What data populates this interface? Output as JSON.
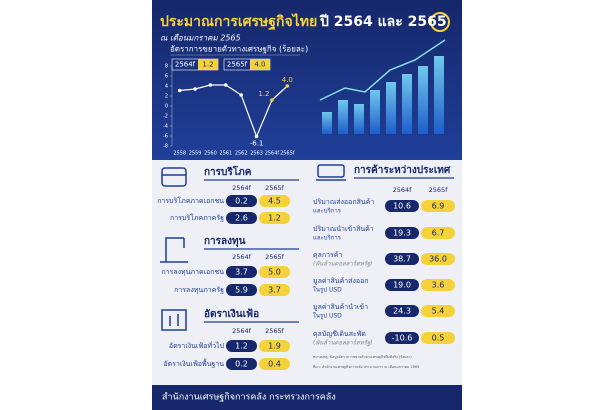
{
  "header": {
    "title_main": "ประมาณการเศรษฐกิจไทย",
    "title_years": "ปี 2564 และ 2565",
    "subtitle": "ณ เดือนมกราคม 2565"
  },
  "chart_data": {
    "type": "line",
    "title": "อัตราการขยายตัวทางเศรษฐกิจ (ร้อยละ)",
    "categories": [
      "2558",
      "2559",
      "2560",
      "2561",
      "2562",
      "2563",
      "2564f",
      "2565f"
    ],
    "values": [
      3.1,
      3.4,
      4.2,
      4.2,
      2.2,
      -6.1,
      1.2,
      4.0
    ],
    "value_labels": [
      null,
      null,
      null,
      null,
      null,
      "-6.1",
      "1.2",
      "4.0"
    ],
    "color": "#ffffff",
    "point_colors": [
      "#ffffff",
      "#ffffff",
      "#ffffff",
      "#ffffff",
      "#ffffff",
      "#ffffff",
      "#f5d13a",
      "#f5d13a"
    ],
    "ylim": [
      -8,
      8
    ],
    "yticks": [
      -8,
      -6,
      -4,
      -2,
      0,
      2,
      4,
      6,
      8
    ],
    "grid": false,
    "highlights": [
      {
        "label": "2564f",
        "value": "1.2"
      },
      {
        "label": "2565f",
        "value": "4.0"
      }
    ]
  },
  "consumption": {
    "title": "การบริโภค",
    "columns": [
      "2564f",
      "2565f"
    ],
    "rows": [
      {
        "label": [
          "การบริโภคภาคเอกชน"
        ],
        "values": [
          "0.2",
          "4.5"
        ]
      },
      {
        "label": [
          "การบริโภคภาครัฐ"
        ],
        "values": [
          "2.6",
          "1.2"
        ]
      }
    ]
  },
  "investment": {
    "title": "การลงทุน",
    "columns": [
      "2564f",
      "2565f"
    ],
    "rows": [
      {
        "label": [
          "การลงทุนภาคเอกชน"
        ],
        "values": [
          "3.7",
          "5.0"
        ]
      },
      {
        "label": [
          "การลงทุนภาครัฐ"
        ],
        "values": [
          "5.9",
          "3.7"
        ]
      }
    ]
  },
  "inflation": {
    "title": "อัตราเงินเฟ้อ",
    "columns": [
      "2564f",
      "2565f"
    ],
    "rows": [
      {
        "label": [
          "อัตราเงินเฟ้อทั่วไป"
        ],
        "values": [
          "1.2",
          "1.9"
        ]
      },
      {
        "label": [
          "อัตราเงินเฟ้อพื้นฐาน"
        ],
        "values": [
          "0.2",
          "0.4"
        ]
      }
    ]
  },
  "trade": {
    "title": "การค้าระหว่างประเทศ",
    "columns": [
      "2564f",
      "2565f"
    ],
    "rows": [
      {
        "label": [
          "ปริมาณส่งออกสินค้า",
          "และบริการ"
        ],
        "values": [
          "10.6",
          "6.9"
        ]
      },
      {
        "label": [
          "ปริมาณนำเข้าสินค้า",
          "และบริการ"
        ],
        "values": [
          "19.3",
          "6.7"
        ]
      },
      {
        "label": [
          "ดุลการค้า",
          "(พันล้านดอลลาร์สหรัฐ)"
        ],
        "values": [
          "38.7",
          "36.0"
        ]
      },
      {
        "label": [
          "มูลค่าสินค้าส่งออก",
          "ในรูป USD"
        ],
        "values": [
          "19.0",
          "3.6"
        ]
      },
      {
        "label": [
          "มูลค่าสินค้านำเข้า",
          "ในรูป USD"
        ],
        "values": [
          "24.3",
          "5.4"
        ]
      },
      {
        "label": [
          "ดุลบัญชีเดินสะพัด",
          "(พันล้านดอลลาร์สหรัฐ)"
        ],
        "values": [
          "-10.6",
          "0.5"
        ]
      }
    ]
  },
  "notes": [
    "หมายเหตุ: ข้อมูลอัตราการขยายตัวทางเศรษฐกิจที่แท้จริง (ร้อยละ)",
    "ที่มา: สำนักงานเศรษฐกิจการคลัง ประมาณการ ณ เดือนมกราคม 2565"
  ],
  "footer": "สำนักงานเศรษฐกิจการคลัง กระทรวงการคลัง"
}
